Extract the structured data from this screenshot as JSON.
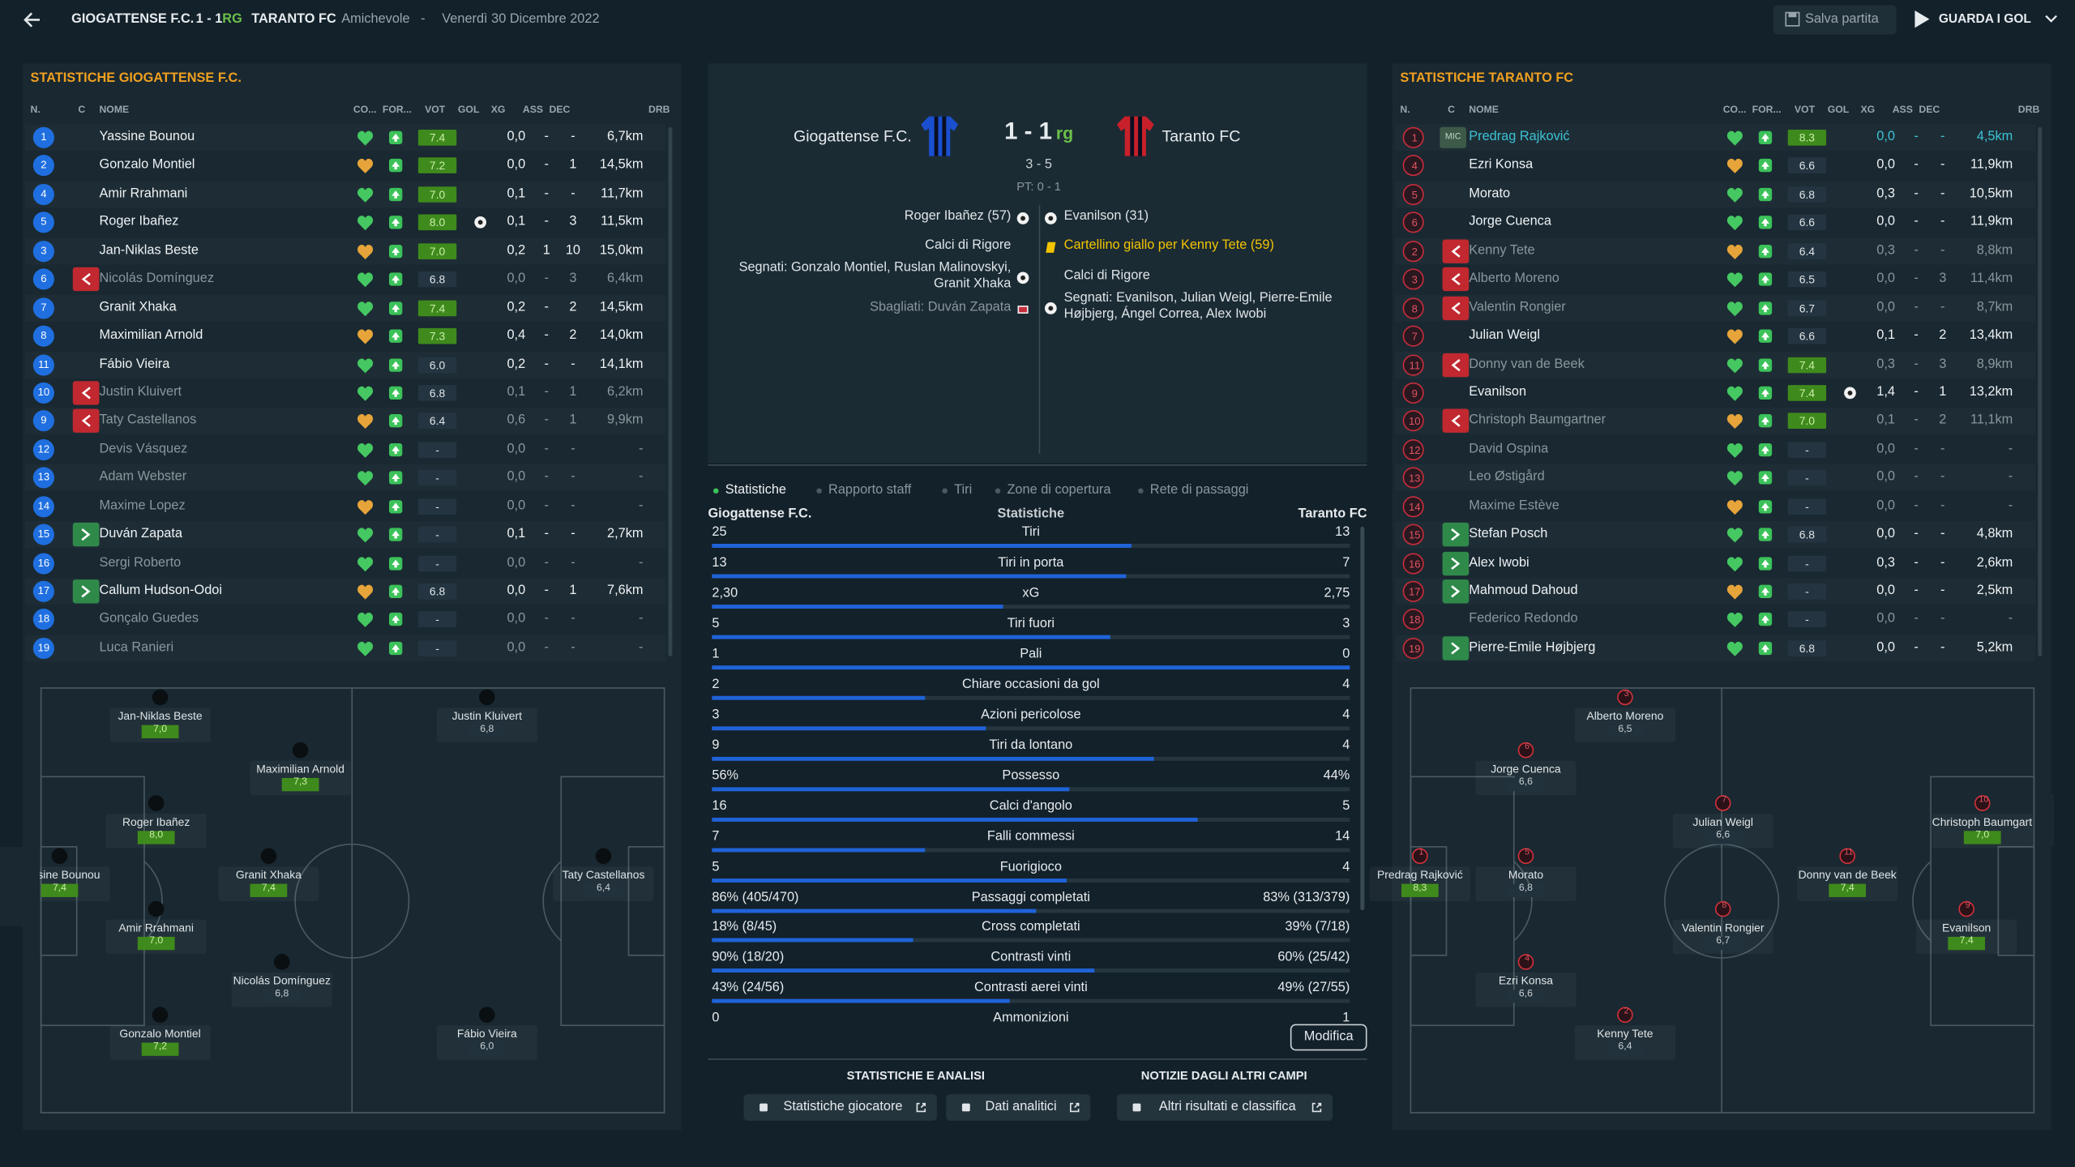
{
  "header": {
    "home": "GIOGATTENSE F.C.",
    "score": "1 - 1",
    "score_suffix": "RG",
    "away": "TARANTO FC",
    "competition": "Amichevole",
    "separator": "-",
    "date": "Venerdì 30 Dicembre 2022",
    "save_button": "Salva partita",
    "goals_button": "GUARDA I GOL"
  },
  "columns": [
    "N.",
    "C",
    "NOME",
    "CO...",
    "FOR...",
    "VOT",
    "GOL",
    "XG",
    "ASS",
    "DEC",
    "DRB"
  ],
  "home_panel": {
    "title": "STATISTICHE GIOGATTENSE F.C.",
    "players": [
      {
        "n": "1",
        "name": "Yassine Bounou",
        "vot": "7.4",
        "xg": "0,0",
        "ass": "-",
        "dec": "-",
        "drb": "6,7km"
      },
      {
        "n": "2",
        "name": "Gonzalo Montiel",
        "vot": "7.2",
        "xg": "0,0",
        "ass": "-",
        "dec": "1",
        "drb": "14,5km"
      },
      {
        "n": "4",
        "name": "Amir Rrahmani",
        "vot": "7.0",
        "xg": "0,1",
        "ass": "-",
        "dec": "-",
        "drb": "11,7km"
      },
      {
        "n": "5",
        "name": "Roger Ibañez",
        "vot": "8.0",
        "goal": true,
        "xg": "0,1",
        "ass": "-",
        "dec": "3",
        "drb": "11,5km"
      },
      {
        "n": "3",
        "name": "Jan-Niklas Beste",
        "vot": "7.0",
        "xg": "0,2",
        "ass": "1",
        "dec": "10",
        "drb": "15,0km"
      },
      {
        "n": "6",
        "sub": "out",
        "name": "Nicolás Domínguez",
        "vot": "6.8",
        "xg": "0,0",
        "ass": "-",
        "dec": "3",
        "drb": "6,4km"
      },
      {
        "n": "7",
        "name": "Granit Xhaka",
        "vot": "7.4",
        "xg": "0,2",
        "ass": "-",
        "dec": "2",
        "drb": "14,5km"
      },
      {
        "n": "8",
        "name": "Maximilian Arnold",
        "vot": "7.3",
        "xg": "0,4",
        "ass": "-",
        "dec": "2",
        "drb": "14,0km"
      },
      {
        "n": "11",
        "name": "Fábio Vieira",
        "vot": "6.0",
        "xg": "0,2",
        "ass": "-",
        "dec": "-",
        "drb": "14,1km"
      },
      {
        "n": "10",
        "sub": "out",
        "name": "Justin Kluivert",
        "vot": "6.8",
        "xg": "0,1",
        "ass": "-",
        "dec": "1",
        "drb": "6,2km"
      },
      {
        "n": "9",
        "sub": "out",
        "name": "Taty Castellanos",
        "vot": "6.4",
        "xg": "0,6",
        "ass": "-",
        "dec": "1",
        "drb": "9,9km"
      },
      {
        "n": "12",
        "name": "Devis Vásquez",
        "vot": "-",
        "xg": "0,0",
        "ass": "-",
        "dec": "-",
        "drb": "-"
      },
      {
        "n": "13",
        "name": "Adam Webster",
        "vot": "-",
        "xg": "0,0",
        "ass": "-",
        "dec": "-",
        "drb": "-"
      },
      {
        "n": "14",
        "name": "Maxime Lopez",
        "vot": "-",
        "xg": "0,0",
        "ass": "-",
        "dec": "-",
        "drb": "-"
      },
      {
        "n": "15",
        "sub": "in",
        "name": "Duván Zapata",
        "vot": "-",
        "xg": "0,1",
        "ass": "-",
        "dec": "-",
        "drb": "2,7km"
      },
      {
        "n": "16",
        "name": "Sergi Roberto",
        "vot": "-",
        "xg": "0,0",
        "ass": "-",
        "dec": "-",
        "drb": "-"
      },
      {
        "n": "17",
        "sub": "in",
        "name": "Callum Hudson-Odoi",
        "vot": "6.8",
        "xg": "0,0",
        "ass": "-",
        "dec": "1",
        "drb": "7,6km"
      },
      {
        "n": "18",
        "name": "Gonçalo Guedes",
        "vot": "-",
        "xg": "0,0",
        "ass": "-",
        "dec": "-",
        "drb": "-"
      },
      {
        "n": "19",
        "name": "Luca Ranieri",
        "vot": "-",
        "xg": "0,0",
        "ass": "-",
        "dec": "-",
        "drb": "-"
      }
    ],
    "pitch": [
      {
        "name": "Jan-Niklas Beste",
        "rating": "7,0"
      },
      {
        "name": "Justin Kluivert",
        "rating": "6,8"
      },
      {
        "name": "Maximilian Arnold",
        "rating": "7,3"
      },
      {
        "name": "Roger Ibañez",
        "rating": "8,0"
      },
      {
        "name": "Yassine Bounou",
        "rating": "7,4"
      },
      {
        "name": "Granit Xhaka",
        "rating": "7,4"
      },
      {
        "name": "Taty Castellanos",
        "rating": "6,4"
      },
      {
        "name": "Amir Rrahmani",
        "rating": "7,0"
      },
      {
        "name": "Nicolás Domínguez",
        "rating": "6,8"
      },
      {
        "name": "Gonzalo Montiel",
        "rating": "7,2"
      },
      {
        "name": "Fábio Vieira",
        "rating": "6,0"
      }
    ]
  },
  "away_panel": {
    "title": "STATISTICHE TARANTO FC",
    "players": [
      {
        "n": "1",
        "c": "MIC",
        "highlight": true,
        "name": "Predrag Rajković",
        "vot": "8.3",
        "xg": "0,0",
        "ass": "-",
        "dec": "-",
        "drb": "4,5km"
      },
      {
        "n": "4",
        "name": "Ezri Konsa",
        "vot": "6.6",
        "xg": "0,0",
        "ass": "-",
        "dec": "-",
        "drb": "11,9km"
      },
      {
        "n": "5",
        "name": "Morato",
        "vot": "6.8",
        "xg": "0,3",
        "ass": "-",
        "dec": "-",
        "drb": "10,5km"
      },
      {
        "n": "6",
        "name": "Jorge Cuenca",
        "vot": "6.6",
        "xg": "0,0",
        "ass": "-",
        "dec": "-",
        "drb": "11,9km"
      },
      {
        "n": "2",
        "sub": "out",
        "name": "Kenny Tete",
        "vot": "6.4",
        "xg": "0,3",
        "ass": "-",
        "dec": "-",
        "drb": "8,8km"
      },
      {
        "n": "3",
        "sub": "out",
        "name": "Alberto Moreno",
        "vot": "6.5",
        "xg": "0,0",
        "ass": "-",
        "dec": "3",
        "drb": "11,4km"
      },
      {
        "n": "8",
        "sub": "out",
        "name": "Valentin Rongier",
        "vot": "6.7",
        "xg": "0,0",
        "ass": "-",
        "dec": "-",
        "drb": "8,7km"
      },
      {
        "n": "7",
        "name": "Julian Weigl",
        "vot": "6.6",
        "xg": "0,1",
        "ass": "-",
        "dec": "2",
        "drb": "13,4km"
      },
      {
        "n": "11",
        "sub": "out",
        "name": "Donny van de Beek",
        "vot": "7.4",
        "xg": "0,3",
        "ass": "-",
        "dec": "3",
        "drb": "8,9km"
      },
      {
        "n": "9",
        "name": "Evanilson",
        "vot": "7.4",
        "goal": true,
        "xg": "1,4",
        "ass": "-",
        "dec": "1",
        "drb": "13,2km"
      },
      {
        "n": "10",
        "sub": "out",
        "name": "Christoph Baumgartner",
        "vot": "7.0",
        "xg": "0,1",
        "ass": "-",
        "dec": "2",
        "drb": "11,1km"
      },
      {
        "n": "12",
        "name": "David Ospina",
        "vot": "-",
        "xg": "0,0",
        "ass": "-",
        "dec": "-",
        "drb": "-"
      },
      {
        "n": "13",
        "name": "Leo Østigård",
        "vot": "-",
        "xg": "0,0",
        "ass": "-",
        "dec": "-",
        "drb": "-"
      },
      {
        "n": "14",
        "name": "Maxime Estève",
        "vot": "-",
        "xg": "0,0",
        "ass": "-",
        "dec": "-",
        "drb": "-"
      },
      {
        "n": "15",
        "sub": "in",
        "name": "Stefan Posch",
        "vot": "6.8",
        "xg": "0,0",
        "ass": "-",
        "dec": "-",
        "drb": "4,8km"
      },
      {
        "n": "16",
        "sub": "in",
        "name": "Alex Iwobi",
        "vot": "-",
        "xg": "0,3",
        "ass": "-",
        "dec": "-",
        "drb": "2,6km"
      },
      {
        "n": "17",
        "sub": "in",
        "name": "Mahmoud Dahoud",
        "vot": "-",
        "xg": "0,0",
        "ass": "-",
        "dec": "-",
        "drb": "2,5km"
      },
      {
        "n": "18",
        "name": "Federico Redondo",
        "vot": "-",
        "xg": "0,0",
        "ass": "-",
        "dec": "-",
        "drb": "-"
      },
      {
        "n": "19",
        "sub": "in",
        "name": "Pierre-Emile Højbjerg",
        "vot": "6.8",
        "xg": "0,0",
        "ass": "-",
        "dec": "-",
        "drb": "5,2km"
      }
    ],
    "pitch": [
      {
        "n": "3",
        "name": "Alberto Moreno",
        "rating": "6,5"
      },
      {
        "n": "6",
        "name": "Jorge Cuenca",
        "rating": "6,6"
      },
      {
        "n": "7",
        "name": "Julian Weigl",
        "rating": "6,6"
      },
      {
        "n": "10",
        "name": "Christoph Baumgartner",
        "rating": "7,0"
      },
      {
        "n": "1",
        "name": "Predrag Rajković",
        "rating": "8,3"
      },
      {
        "n": "5",
        "name": "Morato",
        "rating": "6,8"
      },
      {
        "n": "11",
        "name": "Donny van de Beek",
        "rating": "7,4"
      },
      {
        "n": "8",
        "name": "Valentin Rongier",
        "rating": "6,7"
      },
      {
        "n": "9",
        "name": "Evanilson",
        "rating": "7,4"
      },
      {
        "n": "4",
        "name": "Ezri Konsa",
        "rating": "6,6"
      },
      {
        "n": "2",
        "name": "Kenny Tete",
        "rating": "6,4"
      }
    ]
  },
  "match": {
    "home": "Giogattense F.C.",
    "score": "1 - 1",
    "score_suffix": "rg",
    "away": "Taranto FC",
    "penalties": "3 - 5",
    "half_time": "PT: 0 - 1",
    "home_events": [
      {
        "text": "Roger Ibañez (57)",
        "icon": "goal"
      },
      {
        "text": "Calci di Rigore"
      },
      {
        "text": "Segnati: Gonzalo Montiel, Ruslan Malinovskyi, Granit Xhaka",
        "icon": "goal"
      },
      {
        "text": "Sbagliati: Duván Zapata",
        "icon": "miss"
      }
    ],
    "away_events": [
      {
        "text": "Evanilson (31)",
        "icon": "goal"
      },
      {
        "text": "Cartellino giallo per Kenny Tete (59)",
        "icon": "yellow"
      },
      {
        "text": "Calci di Rigore"
      },
      {
        "text": "Segnati: Evanilson, Julian Weigl, Pierre-Emile Højbjerg, Ángel Correa, Alex Iwobi",
        "icon": "goal"
      }
    ]
  },
  "stats": {
    "tabs": [
      "Statistiche",
      "Rapporto staff",
      "Tiri",
      "Zone di copertura",
      "Rete di passaggi"
    ],
    "active_tab": 0,
    "home": "Giogattense F.C.",
    "heading": "Statistiche",
    "away": "Taranto FC",
    "rows": [
      {
        "label": "Tiri",
        "home": "25",
        "away": "13"
      },
      {
        "label": "Tiri in porta",
        "home": "13",
        "away": "7"
      },
      {
        "label": "xG",
        "home": "2,30",
        "away": "2,75"
      },
      {
        "label": "Tiri fuori",
        "home": "5",
        "away": "3"
      },
      {
        "label": "Pali",
        "home": "1",
        "away": "0"
      },
      {
        "label": "Chiare occasioni da gol",
        "home": "2",
        "away": "4"
      },
      {
        "label": "Azioni pericolose",
        "home": "3",
        "away": "4"
      },
      {
        "label": "Tiri da lontano",
        "home": "9",
        "away": "4"
      },
      {
        "label": "Possesso",
        "home": "56%",
        "away": "44%"
      },
      {
        "label": "Calci d'angolo",
        "home": "16",
        "away": "5"
      },
      {
        "label": "Falli commessi",
        "home": "7",
        "away": "14"
      },
      {
        "label": "Fuorigioco",
        "home": "5",
        "away": "4"
      },
      {
        "label": "Passaggi completati",
        "home": "86% (405/470)",
        "away": "83% (313/379)"
      },
      {
        "label": "Cross completati",
        "home": "18% (8/45)",
        "away": "39% (7/18)"
      },
      {
        "label": "Contrasti vinti",
        "home": "90% (18/20)",
        "away": "60% (25/42)"
      },
      {
        "label": "Contrasti aerei vinti",
        "home": "43% (24/56)",
        "away": "49% (27/55)"
      },
      {
        "label": "Ammonizioni",
        "home": "0",
        "away": "1"
      }
    ],
    "edit_button": "Modifica"
  },
  "footer": {
    "analysis_title": "STATISTICHE E ANALISI",
    "news_title": "NOTIZIE DAGLI ALTRI CAMPI",
    "player_stats_button": "Statistiche giocatore",
    "analytics_button": "Dati analitici",
    "results_button": "Altri risultati e classifica"
  }
}
